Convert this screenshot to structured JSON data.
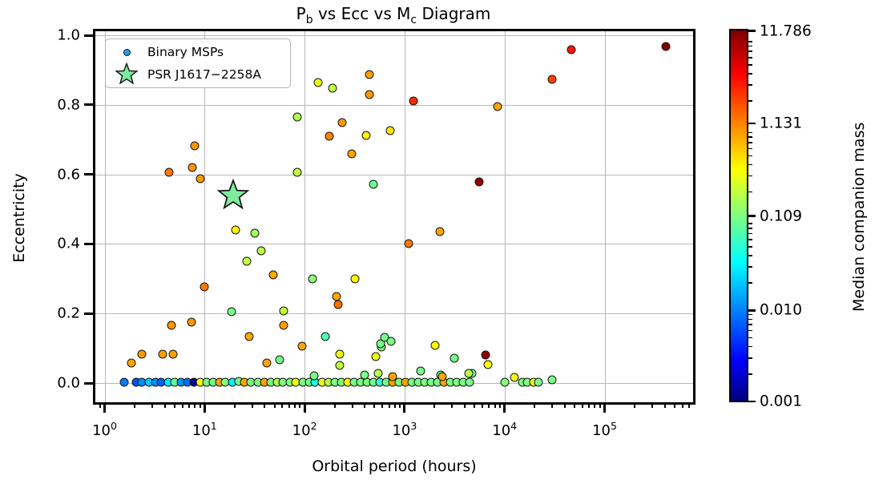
{
  "figure": {
    "title": {
      "part1": "P",
      "sub1": "b",
      "part2": " vs Ecc vs M",
      "sub2": "c",
      "part3": " Diagram"
    },
    "xlabel": "Orbital period (hours)",
    "ylabel": "Eccentricity",
    "background_color": "#ffffff",
    "grid_color": "#b8b8b8"
  },
  "legend": {
    "entries": [
      {
        "label": "Binary MSPs",
        "marker": "circle",
        "color": "#1f9ff3"
      },
      {
        "label": "PSR J1617−2258A",
        "marker": "star",
        "color": "#7eeb9e"
      }
    ]
  },
  "colorbar": {
    "label_prefix": "Median companion mass (M",
    "label_sun": "☉",
    "label_suffix": ")",
    "cmap": "jet",
    "scale": "log",
    "vmin": 0.001,
    "vmax": 11.786,
    "ticks": [
      {
        "value": 11.786,
        "label": "11.786"
      },
      {
        "value": 1.131,
        "label": "1.131"
      },
      {
        "value": 0.109,
        "label": "0.109"
      },
      {
        "value": 0.01,
        "label": "0.010"
      },
      {
        "value": 0.001,
        "label": "0.001"
      }
    ]
  },
  "chart_data": {
    "type": "scatter",
    "title": "P_b vs Ecc vs M_c Diagram",
    "xlabel": "Orbital period (hours)",
    "ylabel": "Eccentricity",
    "x_scale": "log",
    "xlim": [
      0.74,
      790000
    ],
    "ylim": [
      -0.07,
      1.07
    ],
    "grid": true,
    "x_ticks": [
      {
        "value": 1,
        "exp": "0"
      },
      {
        "value": 10,
        "exp": "1"
      },
      {
        "value": 100,
        "exp": "2"
      },
      {
        "value": 1000,
        "exp": "3"
      },
      {
        "value": 10000,
        "exp": "4"
      },
      {
        "value": 100000,
        "exp": "5"
      }
    ],
    "y_ticks": [
      "0.0",
      "0.2",
      "0.4",
      "0.6",
      "0.8",
      "1.0"
    ],
    "color_encoding": "median companion mass (Msun), jet colormap, log scale 0.001-11.786",
    "series": [
      {
        "name": "Binary MSPs",
        "point_format": [
          "orbital_period_hours",
          "eccentricity",
          "companion_mass_msun"
        ],
        "points": [
          [
            1.56,
            0.002,
            0.01
          ],
          [
            2.06,
            0.002,
            0.007
          ],
          [
            2.38,
            0.002,
            0.012
          ],
          [
            2.76,
            0.002,
            0.022
          ],
          [
            3.2,
            0.002,
            0.012
          ],
          [
            3.7,
            0.002,
            0.008
          ],
          [
            4.3,
            0.002,
            0.028
          ],
          [
            5.0,
            0.002,
            0.09
          ],
          [
            5.8,
            0.002,
            0.013
          ],
          [
            6.7,
            0.002,
            0.009
          ],
          [
            7.8,
            0.002,
            0.0012
          ],
          [
            9.0,
            0.002,
            0.35
          ],
          [
            10.5,
            0.002,
            0.1
          ],
          [
            12.1,
            0.002,
            0.1
          ],
          [
            14,
            0.002,
            0.8
          ],
          [
            16,
            0.002,
            0.11
          ],
          [
            19,
            0.002,
            0.03
          ],
          [
            22,
            0.004,
            0.1
          ],
          [
            25,
            0.002,
            0.8
          ],
          [
            29,
            0.002,
            0.1
          ],
          [
            34,
            0.002,
            0.11
          ],
          [
            40,
            0.002,
            0.8
          ],
          [
            46,
            0.002,
            0.1
          ],
          [
            53,
            0.002,
            0.18
          ],
          [
            61,
            0.002,
            0.1
          ],
          [
            71,
            0.002,
            0.11
          ],
          [
            82,
            0.002,
            0.3
          ],
          [
            96,
            0.002,
            0.1
          ],
          [
            111,
            0.002,
            0.1
          ],
          [
            128,
            0.002,
            0.04
          ],
          [
            149,
            0.002,
            0.3
          ],
          [
            173,
            0.002,
            0.18
          ],
          [
            200,
            0.002,
            0.1
          ],
          [
            232,
            0.002,
            0.11
          ],
          [
            269,
            0.002,
            0.4
          ],
          [
            312,
            0.002,
            0.1
          ],
          [
            362,
            0.002,
            0.1
          ],
          [
            419,
            0.002,
            0.11
          ],
          [
            487,
            0.002,
            0.1
          ],
          [
            564,
            0.002,
            0.05
          ],
          [
            654,
            0.002,
            0.1
          ],
          [
            758,
            0.002,
            0.8
          ],
          [
            878,
            0.002,
            0.1
          ],
          [
            1018,
            0.002,
            0.8
          ],
          [
            1181,
            0.002,
            0.1
          ],
          [
            1369,
            0.002,
            0.1
          ],
          [
            1588,
            0.002,
            0.11
          ],
          [
            1841,
            0.002,
            0.1
          ],
          [
            2135,
            0.002,
            0.1
          ],
          [
            2475,
            0.002,
            0.8
          ],
          [
            2870,
            0.002,
            0.1
          ],
          [
            3329,
            0.002,
            0.11
          ],
          [
            3860,
            0.002,
            0.1
          ],
          [
            4476,
            0.002,
            0.1
          ],
          [
            10000,
            0.002,
            0.12
          ],
          [
            15100,
            0.002,
            0.1
          ],
          [
            16900,
            0.002,
            0.11
          ],
          [
            19500,
            0.002,
            0.3
          ],
          [
            21800,
            0.002,
            0.1
          ],
          [
            29900,
            0.009,
            0.1
          ],
          [
            12590,
            0.016,
            0.3
          ],
          [
            124,
            0.021,
            0.1
          ],
          [
            396,
            0.023,
            0.1
          ],
          [
            543,
            0.028,
            0.18
          ],
          [
            758,
            0.019,
            0.8
          ],
          [
            1445,
            0.035,
            0.1
          ],
          [
            2290,
            0.023,
            0.1
          ],
          [
            2375,
            0.019,
            0.8
          ],
          [
            3130,
            0.072,
            0.1
          ],
          [
            4710,
            0.028,
            0.1
          ],
          [
            4365,
            0.028,
            0.18
          ],
          [
            6810,
            0.053,
            0.35
          ],
          [
            6450,
            0.081,
            10
          ],
          [
            224,
            0.083,
            0.3
          ],
          [
            224,
            0.051,
            0.2
          ],
          [
            513,
            0.076,
            0.3
          ],
          [
            585,
            0.104,
            0.12
          ],
          [
            42,
            0.058,
            0.8
          ],
          [
            56,
            0.067,
            0.1
          ],
          [
            1.84,
            0.058,
            0.8
          ],
          [
            2.38,
            0.083,
            0.9
          ],
          [
            3.78,
            0.083,
            0.85
          ],
          [
            4.81,
            0.083,
            0.85
          ],
          [
            94,
            0.106,
            0.8
          ],
          [
            4.63,
            0.167,
            0.9
          ],
          [
            7.35,
            0.176,
            0.9
          ],
          [
            9.9,
            0.277,
            1.2
          ],
          [
            27.8,
            0.134,
            0.8
          ],
          [
            61.4,
            0.167,
            0.85
          ],
          [
            160,
            0.134,
            0.07
          ],
          [
            574,
            0.113,
            0.1
          ],
          [
            630,
            0.131,
            0.1
          ],
          [
            729,
            0.12,
            0.1
          ],
          [
            2010,
            0.108,
            0.35
          ],
          [
            18.5,
            0.204,
            0.1
          ],
          [
            61.4,
            0.208,
            0.2
          ],
          [
            208,
            0.248,
            0.8
          ],
          [
            216,
            0.225,
            1.3
          ],
          [
            119,
            0.3,
            0.12
          ],
          [
            318,
            0.3,
            0.35
          ],
          [
            48.3,
            0.31,
            0.8
          ],
          [
            26.3,
            0.35,
            0.2
          ],
          [
            36.6,
            0.38,
            0.18
          ],
          [
            31.6,
            0.43,
            0.15
          ],
          [
            20.3,
            0.44,
            0.4
          ],
          [
            2250,
            0.436,
            0.8
          ],
          [
            1095,
            0.4,
            1.2
          ],
          [
            4.38,
            0.607,
            1.2
          ],
          [
            7.6,
            0.62,
            0.95
          ],
          [
            7.9,
            0.682,
            0.9
          ],
          [
            9.0,
            0.588,
            0.9
          ],
          [
            84,
            0.607,
            0.2
          ],
          [
            84,
            0.764,
            0.17
          ],
          [
            136,
            0.863,
            0.3
          ],
          [
            190,
            0.849,
            0.2
          ],
          [
            444,
            0.888,
            0.85
          ],
          [
            444,
            0.829,
            0.9
          ],
          [
            237,
            0.748,
            0.9
          ],
          [
            176,
            0.709,
            1.1
          ],
          [
            411,
            0.713,
            0.4
          ],
          [
            716,
            0.725,
            0.45
          ],
          [
            295,
            0.66,
            0.8
          ],
          [
            486,
            0.572,
            0.09
          ],
          [
            1220,
            0.81,
            2.5
          ],
          [
            8510,
            0.796,
            0.8
          ],
          [
            5560,
            0.578,
            10
          ],
          [
            29850,
            0.873,
            2.0
          ],
          [
            46500,
            0.958,
            3.0
          ],
          [
            411000,
            0.967,
            11.5
          ]
        ]
      }
    ],
    "highlight": {
      "name": "PSR J1617−2258A",
      "marker": "star",
      "orbital_period_hours": 19.2,
      "eccentricity": 0.54,
      "color": "#7eeb9e"
    }
  }
}
